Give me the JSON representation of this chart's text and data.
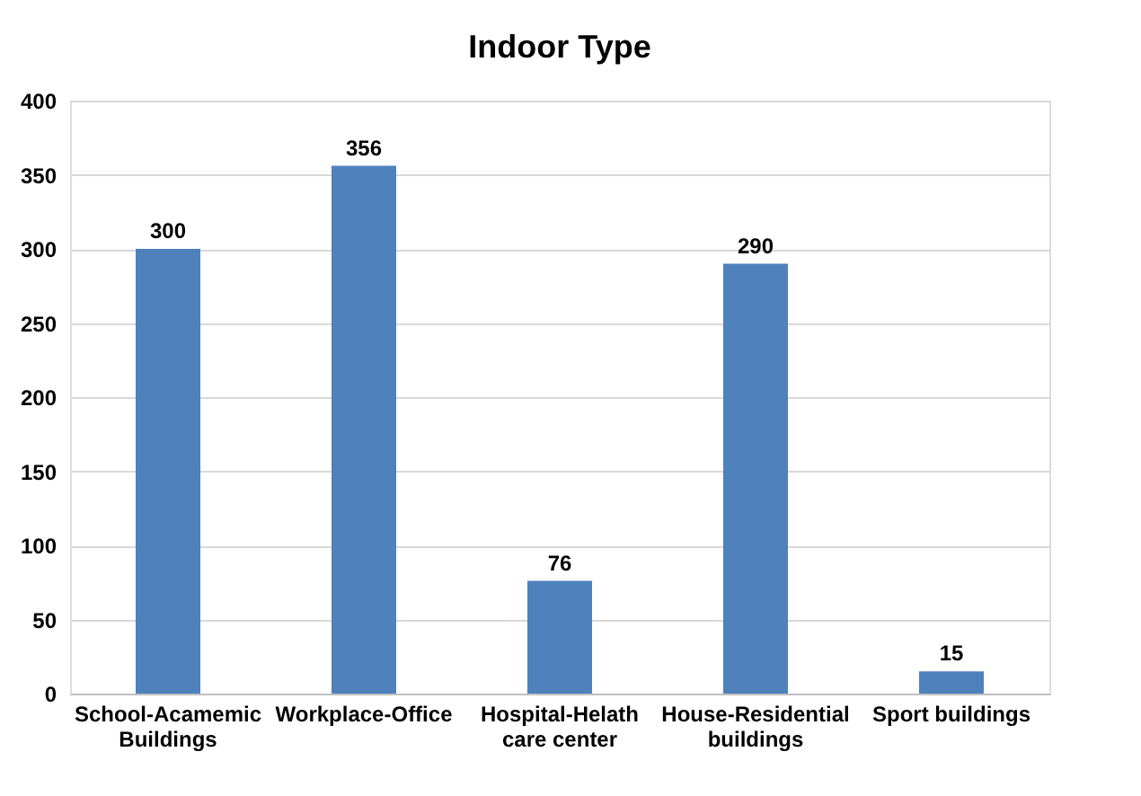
{
  "chart_data": {
    "type": "bar",
    "title": "Indoor Type",
    "categories": [
      "School-Acamemic Buildings",
      "Workplace-Office",
      "Hospital-Helath care center",
      "House-Residential buildings",
      "Sport buildings"
    ],
    "values": [
      300,
      356,
      76,
      290,
      15
    ],
    "color": "#4f81bd",
    "ylim": [
      0,
      400
    ],
    "yticks": [
      0,
      50,
      100,
      150,
      200,
      250,
      300,
      350,
      400
    ],
    "grid": "y",
    "data_labels": true
  }
}
